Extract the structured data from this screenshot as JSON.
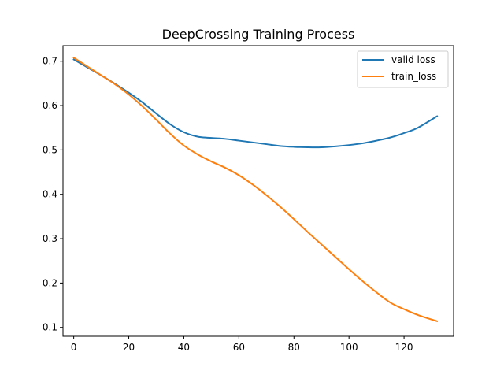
{
  "chart_data": {
    "type": "line",
    "title": "DeepCrossing Training Process",
    "xlabel": "",
    "ylabel": "",
    "xlim": [
      -3.9,
      138.0
    ],
    "ylim": [
      0.08,
      0.735
    ],
    "x_ticks": [
      0,
      20,
      40,
      60,
      80,
      100,
      120
    ],
    "y_ticks": [
      0.1,
      0.2,
      0.3,
      0.4,
      0.5,
      0.6,
      0.7
    ],
    "grid": false,
    "legend_position": "top-right",
    "series": [
      {
        "name": "valid loss",
        "color": "#1f77b4",
        "x": [
          0,
          5,
          10,
          15,
          20,
          25,
          30,
          35,
          40,
          45,
          50,
          55,
          60,
          65,
          70,
          75,
          80,
          85,
          90,
          95,
          100,
          105,
          110,
          115,
          120,
          125,
          132
        ],
        "y": [
          0.704,
          0.686,
          0.668,
          0.649,
          0.629,
          0.607,
          0.582,
          0.558,
          0.54,
          0.53,
          0.527,
          0.525,
          0.521,
          0.517,
          0.513,
          0.509,
          0.507,
          0.506,
          0.506,
          0.508,
          0.511,
          0.515,
          0.521,
          0.528,
          0.538,
          0.55,
          0.576
        ]
      },
      {
        "name": "train_loss",
        "color": "#ff7f0e",
        "x": [
          0,
          5,
          10,
          15,
          20,
          25,
          30,
          35,
          40,
          45,
          50,
          55,
          60,
          65,
          70,
          75,
          80,
          85,
          90,
          95,
          100,
          105,
          110,
          115,
          120,
          125,
          132
        ],
        "y": [
          0.708,
          0.688,
          0.668,
          0.648,
          0.625,
          0.598,
          0.568,
          0.537,
          0.51,
          0.49,
          0.474,
          0.46,
          0.443,
          0.422,
          0.398,
          0.372,
          0.344,
          0.315,
          0.287,
          0.259,
          0.231,
          0.204,
          0.179,
          0.156,
          0.141,
          0.128,
          0.114
        ]
      }
    ]
  }
}
